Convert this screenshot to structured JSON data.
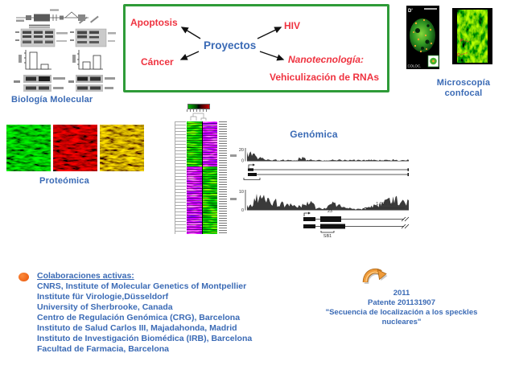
{
  "projects_diagram": {
    "center": "Proyectos",
    "nodes": {
      "top_left": "Apoptosis",
      "top_right": "HIV",
      "bottom_left": "Cáncer",
      "bottom_right_line1": "Nanotecnología:",
      "bottom_right_line2": "Vehiculización de RNAs"
    },
    "border_color": "#2e9b38",
    "node_text_color": "#ef3340",
    "center_text_color": "#3a6ab5"
  },
  "section_labels": {
    "molecular_biology": "Biología Molecular",
    "proteomics": "Proteómica",
    "confocal_line1": "Microscopía",
    "confocal_line2": "confocal",
    "genomics": "Genómica"
  },
  "confocal": {
    "panel1_corner_label": "D'",
    "panel1_coloc_label": "COLOC.",
    "panel2_p_label": "P",
    "panel2_c_label": "C"
  },
  "genomics": {
    "track1": {
      "y_max": "20",
      "y_min": "0"
    },
    "track2": {
      "y_max": "10",
      "y_min": "0",
      "scale_bar": "1,000 bp",
      "exon_label": "23",
      "region_label": "SB1"
    }
  },
  "collaborations": {
    "heading": "Colaboraciones activas:",
    "items": [
      "CNRS, Institute of Molecular Genetics of Montpellier",
      "Institute für Virologie,Düsseldorf",
      "University of Sherbrooke, Canada",
      "Centro de Regulación Genómica (CRG), Barcelona",
      "Instituto de Salud Carlos III, Majadahonda, Madrid",
      "Instituto de Investigación Biomédica (IRB), Barcelona",
      "Facultad de Farmacia, Barcelona"
    ]
  },
  "patent": {
    "year": "2011",
    "title": "Patente 201131907",
    "quote_line1": "\"Secuencia de localización a los speckles",
    "quote_line2": "nucleares\"",
    "text_color": "#3a6ab5"
  }
}
